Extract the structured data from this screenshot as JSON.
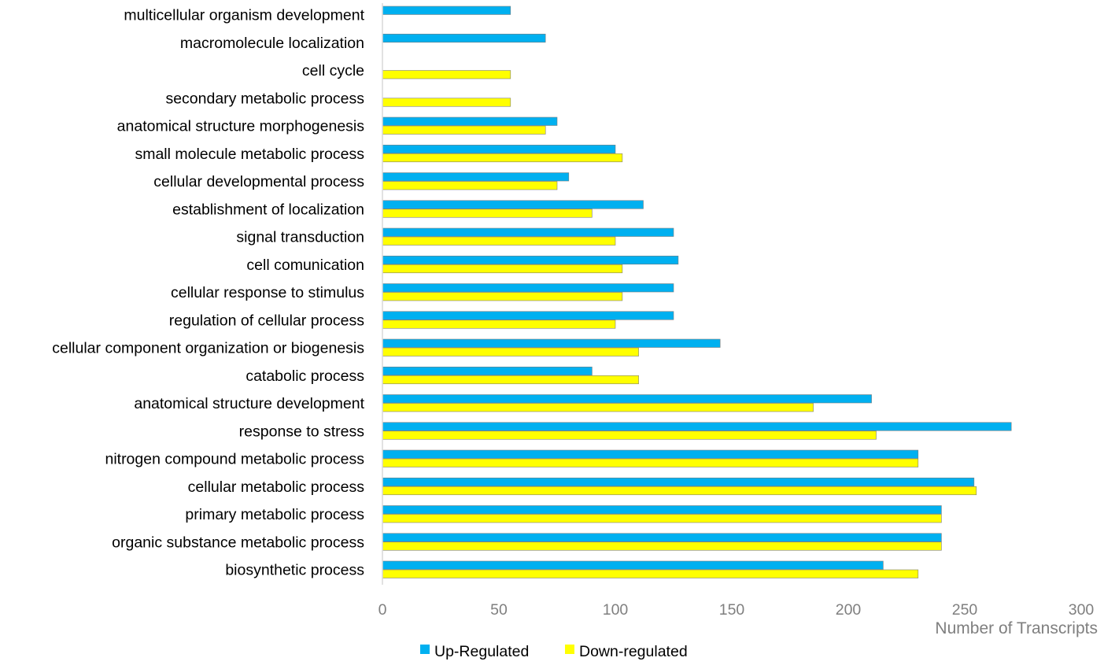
{
  "chart_data": {
    "type": "bar",
    "orientation": "horizontal",
    "title": "",
    "xlabel": "Number of Transcripts",
    "ylabel": "",
    "xlim": [
      0,
      300
    ],
    "x_ticks": [
      0,
      50,
      100,
      150,
      200,
      250,
      300
    ],
    "grid": false,
    "legend_position": "bottom",
    "categories": [
      "multicellular organism development",
      "macromolecule localization",
      "cell cycle",
      "secondary metabolic process",
      "anatomical structure morphogenesis",
      "small molecule metabolic process",
      "cellular developmental process",
      "establishment of localization",
      "signal transduction",
      "cell comunication",
      "cellular response to stimulus",
      "regulation of cellular process",
      "cellular component organization or biogenesis",
      "catabolic process",
      "anatomical structure development",
      "response to stress",
      "nitrogen compound metabolic process",
      "cellular metabolic process",
      "primary metabolic process",
      "organic substance metabolic process",
      "biosynthetic process"
    ],
    "series": [
      {
        "name": "Up-Regulated",
        "color": "#00b0f0",
        "values": [
          55,
          70,
          0,
          0,
          75,
          100,
          80,
          112,
          125,
          127,
          125,
          125,
          145,
          90,
          210,
          270,
          230,
          254,
          240,
          240,
          215
        ]
      },
      {
        "name": "Down-regulated",
        "color": "#ffff00",
        "values": [
          0,
          0,
          55,
          55,
          70,
          103,
          75,
          90,
          100,
          103,
          103,
          100,
          110,
          110,
          185,
          212,
          230,
          255,
          240,
          240,
          230
        ]
      }
    ]
  }
}
